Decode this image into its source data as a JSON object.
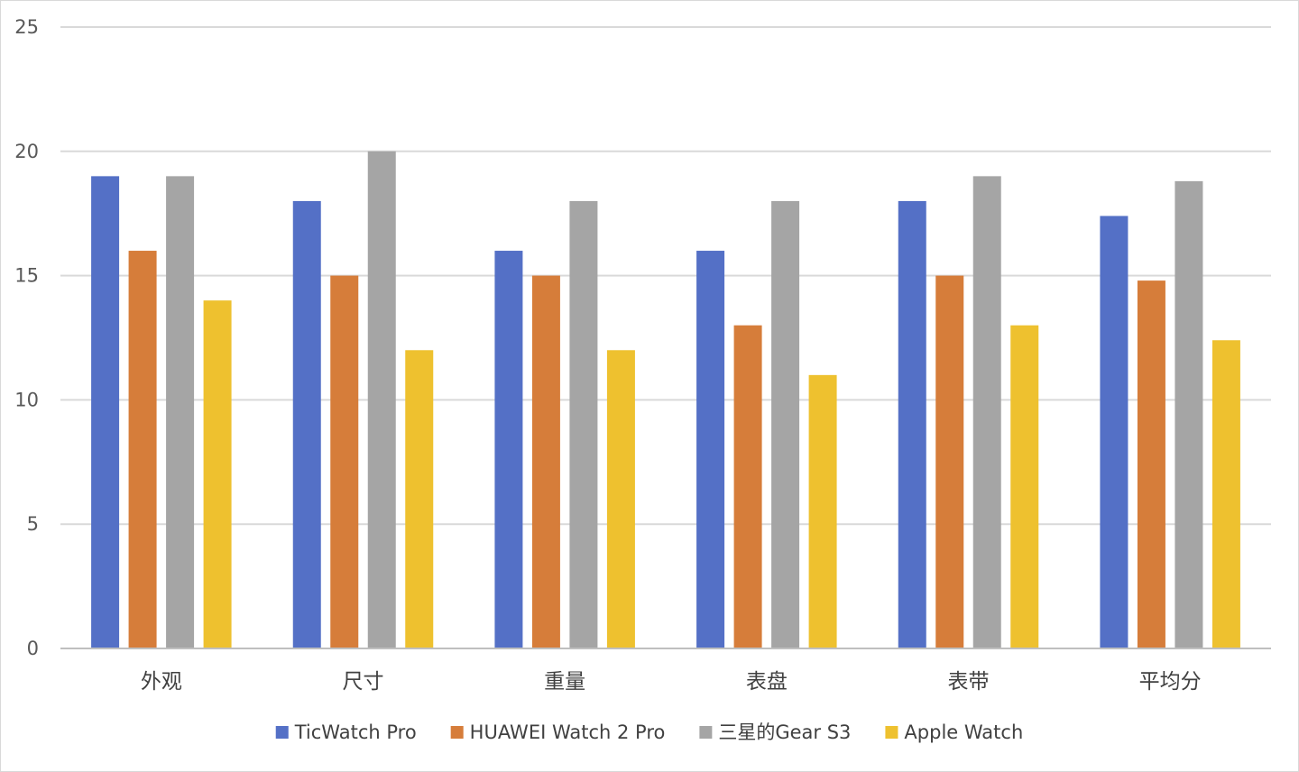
{
  "chart_data": {
    "type": "bar",
    "title": "",
    "xlabel": "",
    "ylabel": "",
    "ylim": [
      0,
      25
    ],
    "yticks": [
      0,
      5,
      10,
      15,
      20,
      25
    ],
    "grid": true,
    "legend_position": "bottom",
    "categories": [
      "外观",
      "尺寸",
      "重量",
      "表盘",
      "表带",
      "平均分"
    ],
    "series": [
      {
        "name": "TicWatch Pro",
        "color": "#5470c6",
        "values": [
          19,
          18,
          16,
          16,
          18,
          17.4
        ]
      },
      {
        "name": "HUAWEI Watch 2 Pro",
        "color": "#d67d3a",
        "values": [
          16,
          15,
          15,
          13,
          15,
          14.8
        ]
      },
      {
        "name": "三星的Gear S3",
        "color": "#a5a5a5",
        "values": [
          19,
          20,
          18,
          18,
          19,
          18.8
        ]
      },
      {
        "name": "Apple Watch",
        "color": "#eec12f",
        "values": [
          14,
          12,
          12,
          11,
          13,
          12.4
        ]
      }
    ]
  }
}
